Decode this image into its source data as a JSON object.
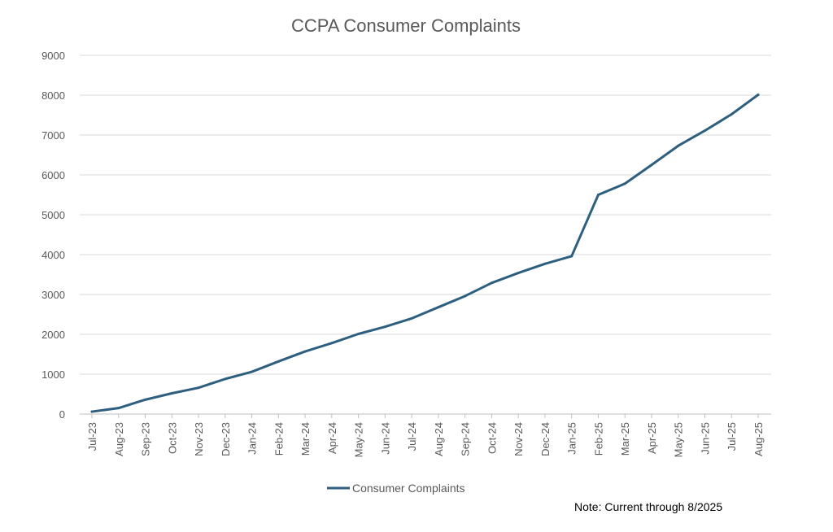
{
  "chart_data": {
    "type": "line",
    "title": "CCPA Consumer Complaints",
    "xlabel": "",
    "ylabel": "",
    "ylim": [
      0,
      9000
    ],
    "yticks": [
      0,
      1000,
      2000,
      3000,
      4000,
      5000,
      6000,
      7000,
      8000,
      9000
    ],
    "grid": true,
    "legend_position": "bottom",
    "categories": [
      "Jul-23",
      "Aug-23",
      "Sep-23",
      "Oct-23",
      "Nov-23",
      "Dec-23",
      "Jan-24",
      "Feb-24",
      "Mar-24",
      "Apr-24",
      "May-24",
      "Jun-24",
      "Jul-24",
      "Aug-24",
      "Sep-24",
      "Oct-24",
      "Nov-24",
      "Dec-24",
      "Jan-25",
      "Feb-25",
      "Mar-25",
      "Apr-25",
      "May-25",
      "Jun-25",
      "Jul-25",
      "Aug-25"
    ],
    "series": [
      {
        "name": "Consumer Complaints",
        "color": "#2e5f7f",
        "values": [
          60,
          150,
          360,
          520,
          660,
          880,
          1060,
          1320,
          1570,
          1780,
          2010,
          2190,
          2400,
          2680,
          2960,
          3290,
          3540,
          3770,
          3960,
          5500,
          5780,
          6250,
          6730,
          7110,
          7520,
          8010
        ]
      }
    ]
  },
  "note": "Note: Current through 8/2025"
}
